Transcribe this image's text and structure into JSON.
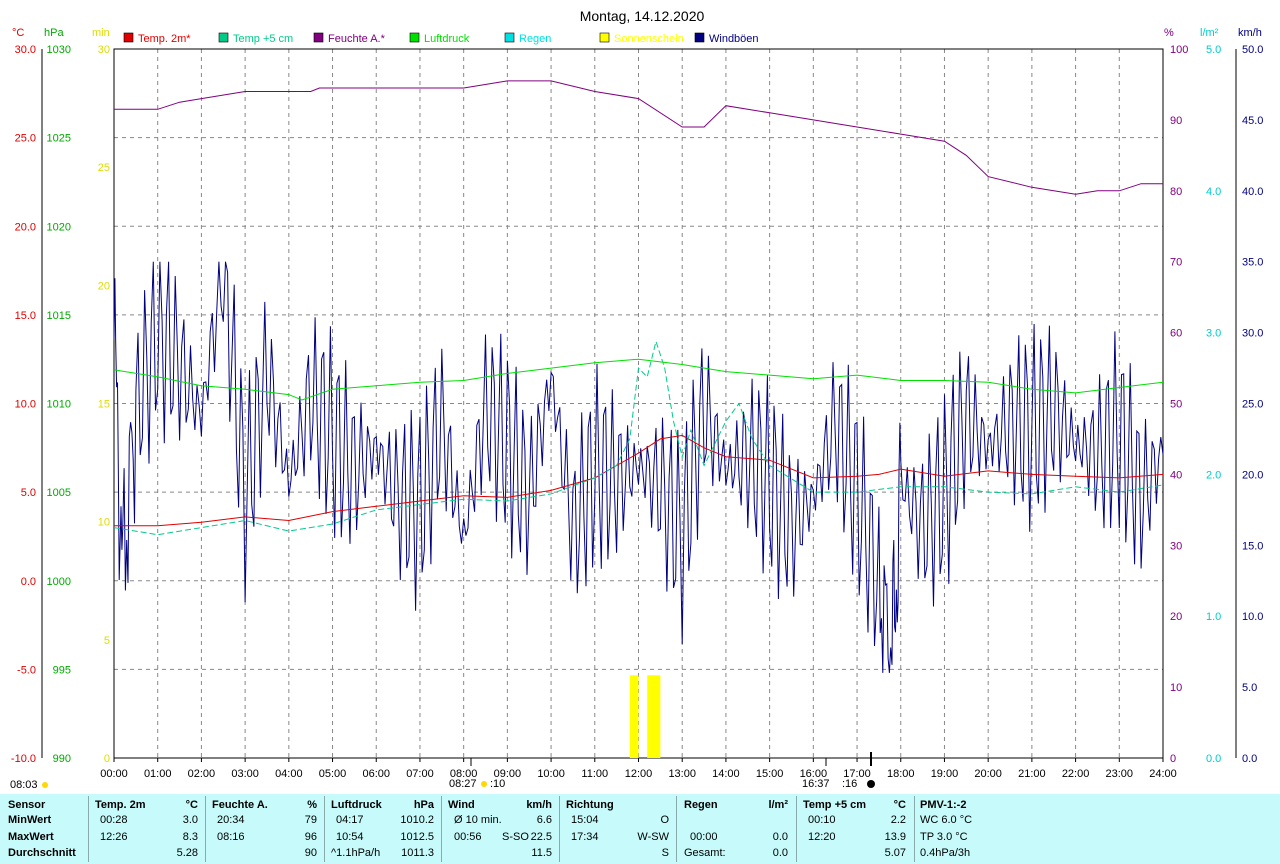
{
  "title": "Montag, 14.12.2020",
  "colors": {
    "temp2m": "#e00000",
    "temp5cm": "#00cc88",
    "humidity": "#800080",
    "pressure": "#00e000",
    "rain": "#00e0e0",
    "sun": "#ffff00",
    "wind": "#000080"
  },
  "legend": [
    {
      "label": "Temp. 2m*",
      "color": "#e00000"
    },
    {
      "label": "Temp +5 cm",
      "color": "#00cc88"
    },
    {
      "label": "Feuchte A.*",
      "color": "#800080"
    },
    {
      "label": "Luftdruck",
      "color": "#00e000"
    },
    {
      "label": "Regen",
      "color": "#00e0e0"
    },
    {
      "label": "Sonnenschein",
      "color": "#ffff00"
    },
    {
      "label": "Windböen",
      "color": "#000080"
    }
  ],
  "axis_units": {
    "temp": "°C",
    "pressure": "hPa",
    "sunmin": "min",
    "humidity": "%",
    "rain": "l/m²",
    "wind": "km/h"
  },
  "chart_data": {
    "type": "line",
    "grid": true,
    "x_ticks": [
      "00:00",
      "01:00",
      "02:00",
      "03:00",
      "04:00",
      "05:00",
      "06:00",
      "07:00",
      "08:00",
      "09:00",
      "10:00",
      "11:00",
      "12:00",
      "13:00",
      "14:00",
      "15:00",
      "16:00",
      "17:00",
      "18:00",
      "19:00",
      "20:00",
      "21:00",
      "22:00",
      "23:00",
      "24:00"
    ],
    "axes": {
      "temp": {
        "ticks": [
          "30.0",
          "25.0",
          "20.0",
          "15.0",
          "10.0",
          "5.0",
          "0.0",
          "-5.0",
          "-10.0"
        ],
        "range": [
          -10,
          30
        ]
      },
      "pressure": {
        "ticks": [
          "1030",
          "1025",
          "1020",
          "1015",
          "1010",
          "1005",
          "1000",
          "995",
          "990"
        ],
        "range": [
          990,
          1030
        ]
      },
      "sunmin": {
        "ticks": [
          "30",
          "25",
          "20",
          "15",
          "10",
          "5",
          "0"
        ],
        "range": [
          0,
          30
        ]
      },
      "humidity": {
        "ticks": [
          "100",
          "90",
          "80",
          "70",
          "60",
          "50",
          "40",
          "30",
          "20",
          "10",
          "0"
        ],
        "range": [
          0,
          100
        ]
      },
      "rain": {
        "ticks": [
          "5.0",
          "4.0",
          "3.0",
          "2.0",
          "1.0",
          "0.0"
        ],
        "range": [
          0,
          5
        ]
      },
      "wind": {
        "ticks": [
          "50.0",
          "45.0",
          "40.0",
          "35.0",
          "30.0",
          "25.0",
          "20.0",
          "15.0",
          "10.0",
          "5.0",
          "0.0"
        ],
        "range": [
          0,
          50
        ]
      }
    },
    "series": [
      {
        "key": "temp2m",
        "axis": "temp",
        "points": [
          [
            0,
            3.1
          ],
          [
            1,
            3.1
          ],
          [
            2,
            3.3
          ],
          [
            3,
            3.6
          ],
          [
            4,
            3.4
          ],
          [
            5,
            3.9
          ],
          [
            6,
            4.2
          ],
          [
            7,
            4.5
          ],
          [
            8,
            4.8
          ],
          [
            9,
            4.7
          ],
          [
            10,
            5.1
          ],
          [
            11,
            5.8
          ],
          [
            11.5,
            6.5
          ],
          [
            12,
            7.2
          ],
          [
            12.5,
            8.0
          ],
          [
            13,
            8.2
          ],
          [
            13.5,
            7.5
          ],
          [
            14,
            7.0
          ],
          [
            15,
            6.8
          ],
          [
            16,
            5.8
          ],
          [
            17,
            5.9
          ],
          [
            17.5,
            6.0
          ],
          [
            18,
            6.3
          ],
          [
            19,
            5.9
          ],
          [
            20,
            6.2
          ],
          [
            21,
            6.0
          ],
          [
            22,
            5.9
          ],
          [
            23,
            5.8
          ],
          [
            24,
            6.0
          ]
        ]
      },
      {
        "key": "temp5cm",
        "axis": "temp",
        "points": [
          [
            0,
            3.0
          ],
          [
            1,
            2.6
          ],
          [
            2,
            3.0
          ],
          [
            3,
            3.4
          ],
          [
            4,
            2.8
          ],
          [
            5,
            3.2
          ],
          [
            6,
            4.0
          ],
          [
            7,
            4.3
          ],
          [
            8,
            4.6
          ],
          [
            9,
            4.5
          ],
          [
            10,
            4.9
          ],
          [
            11,
            5.8
          ],
          [
            11.5,
            6.5
          ],
          [
            11.8,
            8.0
          ],
          [
            12,
            12.0
          ],
          [
            12.2,
            11.5
          ],
          [
            12.4,
            13.5
          ],
          [
            12.6,
            12.0
          ],
          [
            12.8,
            9.0
          ],
          [
            13,
            7.0
          ],
          [
            13.2,
            8.5
          ],
          [
            13.5,
            6.5
          ],
          [
            14,
            9.0
          ],
          [
            14.3,
            10.0
          ],
          [
            14.6,
            8.0
          ],
          [
            15,
            6.5
          ],
          [
            16,
            5.0
          ],
          [
            17,
            5.0
          ],
          [
            18,
            5.3
          ],
          [
            19,
            5.3
          ],
          [
            20,
            5.0
          ],
          [
            21,
            4.9
          ],
          [
            22,
            5.3
          ],
          [
            23,
            5.0
          ],
          [
            24,
            5.4
          ]
        ]
      },
      {
        "key": "humidity",
        "axis": "humidity",
        "points": [
          [
            0,
            91.5
          ],
          [
            1,
            91.5
          ],
          [
            1.5,
            92.5
          ],
          [
            2,
            93
          ],
          [
            3,
            94
          ],
          [
            4.5,
            94
          ],
          [
            4.7,
            94.5
          ],
          [
            6,
            94.5
          ],
          [
            8,
            94.5
          ],
          [
            9,
            95.5
          ],
          [
            10,
            95.5
          ],
          [
            11,
            94
          ],
          [
            12,
            93
          ],
          [
            13,
            89
          ],
          [
            13.5,
            89
          ],
          [
            14,
            92
          ],
          [
            15,
            91
          ],
          [
            16,
            90
          ],
          [
            17,
            89
          ],
          [
            18,
            88
          ],
          [
            19,
            87
          ],
          [
            19.5,
            85
          ],
          [
            20,
            82
          ],
          [
            21,
            80.5
          ],
          [
            22,
            79.5
          ],
          [
            22.5,
            80
          ],
          [
            23,
            80
          ],
          [
            23.5,
            81
          ],
          [
            24,
            81
          ]
        ]
      },
      {
        "key": "pressure",
        "axis": "pressure",
        "points": [
          [
            0,
            1011.9
          ],
          [
            1,
            1011.5
          ],
          [
            2,
            1011.0
          ],
          [
            3,
            1010.8
          ],
          [
            4,
            1010.5
          ],
          [
            4.3,
            1010.2
          ],
          [
            5,
            1010.8
          ],
          [
            6,
            1011.0
          ],
          [
            7,
            1011.2
          ],
          [
            8,
            1011.3
          ],
          [
            9,
            1011.7
          ],
          [
            10,
            1012.0
          ],
          [
            11,
            1012.3
          ],
          [
            12,
            1012.5
          ],
          [
            13,
            1012.2
          ],
          [
            14,
            1011.8
          ],
          [
            15,
            1011.6
          ],
          [
            16,
            1011.4
          ],
          [
            17,
            1011.6
          ],
          [
            18,
            1011.3
          ],
          [
            19,
            1011.3
          ],
          [
            20,
            1011.2
          ],
          [
            21,
            1010.8
          ],
          [
            22,
            1010.6
          ],
          [
            23,
            1010.9
          ],
          [
            24,
            1011.2
          ]
        ]
      }
    ],
    "wind_gusts": {
      "axis": "wind",
      "points": [
        [
          0,
          29.5
        ],
        [
          0.2,
          13.5
        ],
        [
          0.5,
          24.4
        ],
        [
          1,
          30.2
        ],
        [
          1.5,
          27.8
        ],
        [
          2,
          24.1
        ],
        [
          2.5,
          35.0
        ],
        [
          3,
          18.3
        ],
        [
          3.5,
          27.4
        ],
        [
          4,
          19.4
        ],
        [
          4.5,
          25.6
        ],
        [
          5,
          22.7
        ],
        [
          5.5,
          20.4
        ],
        [
          6,
          21.9
        ],
        [
          6.5,
          18.3
        ],
        [
          7,
          17.6
        ],
        [
          7.5,
          23.7
        ],
        [
          8,
          15.4
        ],
        [
          8.5,
          24.7
        ],
        [
          9,
          22.1
        ],
        [
          9.5,
          18.3
        ],
        [
          10,
          26.9
        ],
        [
          10.5,
          16.0
        ],
        [
          11,
          20.4
        ],
        [
          11.5,
          19.6
        ],
        [
          12,
          20.6
        ],
        [
          12.5,
          19.1
        ],
        [
          13,
          15.5
        ],
        [
          13.5,
          24.7
        ],
        [
          14,
          20.4
        ],
        [
          14.5,
          21.3
        ],
        [
          15,
          19.6
        ],
        [
          15.5,
          16.3
        ],
        [
          16,
          18.4
        ],
        [
          16.5,
          23.7
        ],
        [
          17,
          18.7
        ],
        [
          17.5,
          12.1
        ],
        [
          17.8,
          6.8
        ],
        [
          18,
          19.4
        ],
        [
          18.5,
          16.3
        ],
        [
          19,
          18.6
        ],
        [
          19.5,
          24.1
        ],
        [
          20,
          21.9
        ],
        [
          20.5,
          23.7
        ],
        [
          21,
          23.2
        ],
        [
          21.5,
          24.6
        ],
        [
          22,
          22.1
        ],
        [
          22.5,
          21.4
        ],
        [
          23,
          23.1
        ],
        [
          23.5,
          18.4
        ],
        [
          24,
          21.4
        ]
      ]
    },
    "sun_bars": [
      [
        11.8,
        12.0,
        3.5
      ],
      [
        12.2,
        12.5,
        3.5
      ]
    ]
  },
  "time_marks": {
    "sunrise": "08:27",
    "sunset": "16:37",
    "left_label": "08:03",
    "mid_sun": ":10",
    "mid_sun2": ":16"
  },
  "stats": {
    "row_labels": [
      "Sensor",
      "MinWert",
      "MaxWert",
      "Durchschnitt"
    ],
    "temp2m": {
      "hdr": "Temp. 2m",
      "unit": "°C",
      "min_time": "00:28",
      "min": "3.0",
      "max_time": "12:26",
      "max": "8.3",
      "avg": "5.28"
    },
    "humidity": {
      "hdr": "Feuchte A.",
      "unit": "%",
      "min_time": "20:34",
      "min": "79",
      "max_time": "08:16",
      "max": "96",
      "avg": "90"
    },
    "pressure": {
      "hdr": "Luftdruck",
      "unit": "hPa",
      "min_time": "04:17",
      "min": "1010.2",
      "max_time": "10:54",
      "max": "1012.5",
      "trend": "^1.1hPa/h",
      "avg": "1011.3"
    },
    "wind": {
      "hdr": "Wind",
      "unit": "km/h",
      "min_label": "Ø 10 min.",
      "min": "6.6",
      "max_time": "00:56",
      "max_dir": "S-SO",
      "max": "22.5",
      "avg": "11.5"
    },
    "direction": {
      "hdr": "Richtung",
      "min_time": "15:04",
      "min": "O",
      "max_time": "17:34",
      "max": "W-SW",
      "avg": "S"
    },
    "rain": {
      "hdr": "Regen",
      "unit": "l/m²",
      "max_time": "00:00",
      "max": "0.0",
      "avg_label": "Gesamt:",
      "avg": "0.0"
    },
    "temp5cm": {
      "hdr": "Temp +5 cm",
      "unit": "°C",
      "min_time": "00:10",
      "min": "2.2",
      "max_time": "12:20",
      "max": "13.9",
      "avg": "5.07"
    },
    "pmv": {
      "hdr": "PMV-1:-2",
      "l1": "WC 6.0 °C",
      "l2": "TP 3.0 °C",
      "l3": "0.4hPa/3h"
    }
  }
}
